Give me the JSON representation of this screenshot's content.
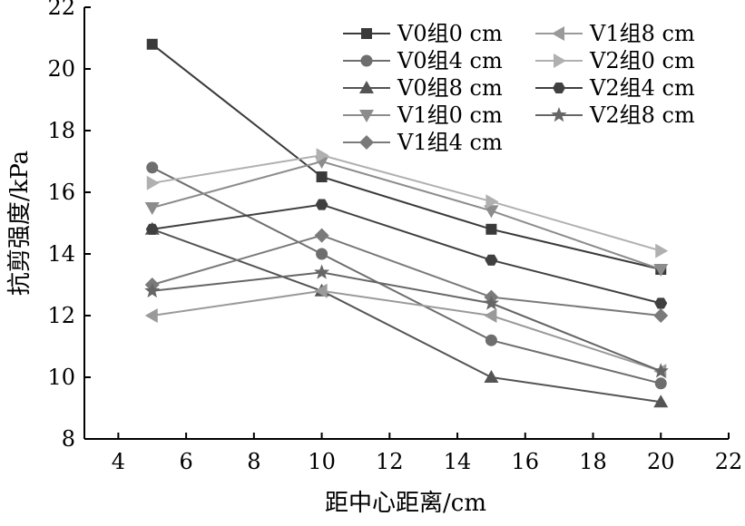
{
  "chart_data": {
    "type": "line",
    "title": "",
    "xlabel": "距中心距离/cm",
    "ylabel": "抗剪强度/kPa",
    "xlim": [
      3,
      22
    ],
    "ylim": [
      8,
      22
    ],
    "xticks": [
      4,
      6,
      8,
      10,
      12,
      14,
      16,
      18,
      20,
      22
    ],
    "yticks": [
      8,
      10,
      12,
      14,
      16,
      18,
      20,
      22
    ],
    "x": [
      5,
      10,
      15,
      20
    ],
    "grid": false,
    "legend_position": "top-right",
    "series": [
      {
        "name": "V0组0 cm",
        "values": [
          20.8,
          16.5,
          14.8,
          13.5
        ],
        "marker": "square",
        "color": "#3a3a3a"
      },
      {
        "name": "V0组4 cm",
        "values": [
          16.8,
          14.0,
          11.2,
          9.8
        ],
        "marker": "circle",
        "color": "#6e6e6e"
      },
      {
        "name": "V0组8 cm",
        "values": [
          14.8,
          12.8,
          10.0,
          9.2
        ],
        "marker": "triangle-up",
        "color": "#545454"
      },
      {
        "name": "V1组0 cm",
        "values": [
          15.5,
          17.0,
          15.4,
          13.5
        ],
        "marker": "triangle-down",
        "color": "#8c8c8c"
      },
      {
        "name": "V1组4 cm",
        "values": [
          13.0,
          14.6,
          12.6,
          12.0
        ],
        "marker": "diamond",
        "color": "#7a7a7a"
      },
      {
        "name": "V1组8 cm",
        "values": [
          12.0,
          12.8,
          12.0,
          10.2
        ],
        "marker": "triangle-left",
        "color": "#9a9a9a"
      },
      {
        "name": "V2组0 cm",
        "values": [
          16.3,
          17.2,
          15.7,
          14.1
        ],
        "marker": "triangle-right",
        "color": "#b0b0b0"
      },
      {
        "name": "V2组4 cm",
        "values": [
          14.8,
          15.6,
          13.8,
          12.4
        ],
        "marker": "hexagon",
        "color": "#404040"
      },
      {
        "name": "V2组8 cm",
        "values": [
          12.8,
          13.4,
          12.4,
          10.2
        ],
        "marker": "star",
        "color": "#666666"
      }
    ]
  }
}
